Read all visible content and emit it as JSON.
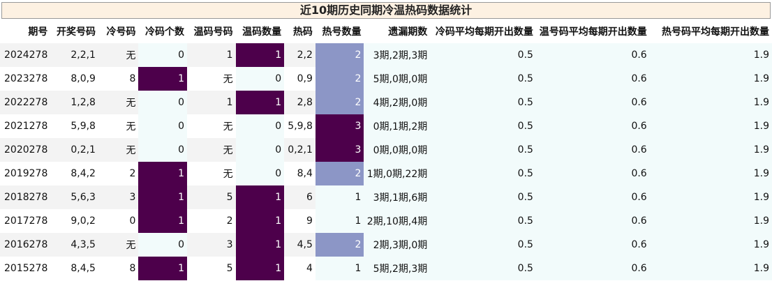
{
  "title": "近10期历史同期冷温热码数据统计",
  "headers": [
    "期号",
    "开奖号码",
    "冷号码",
    "冷码个数",
    "温码号码",
    "温码数量",
    "热码",
    "热号数量",
    "遗漏期数",
    "冷码平均每期开出数量",
    "温号码平均每期开出数量",
    "热号码平均每期开出数量"
  ],
  "colors": {
    "dark": "#4d004b",
    "light": "#8c96c6",
    "mint": "#f2fbfb",
    "stripe": "#f3f3f3",
    "title_bg": "#fdf1e2"
  },
  "rows": [
    {
      "period": "2024278",
      "draw": "2,2,1",
      "cold": "无",
      "cold_count": "0",
      "warm": "1",
      "warm_count": "1",
      "hot": "2,2",
      "hot_count": "2",
      "miss": "3期,2期,3期",
      "cold_avg": "0.5",
      "warm_avg": "0.6",
      "hot_avg": "1.9"
    },
    {
      "period": "2023278",
      "draw": "8,0,9",
      "cold": "8",
      "cold_count": "1",
      "warm": "无",
      "warm_count": "0",
      "hot": "0,9",
      "hot_count": "2",
      "miss": "5期,0期,0期",
      "cold_avg": "0.5",
      "warm_avg": "0.6",
      "hot_avg": "1.9"
    },
    {
      "period": "2022278",
      "draw": "1,2,8",
      "cold": "无",
      "cold_count": "0",
      "warm": "1",
      "warm_count": "1",
      "hot": "2,8",
      "hot_count": "2",
      "miss": "4期,2期,0期",
      "cold_avg": "0.5",
      "warm_avg": "0.6",
      "hot_avg": "1.9"
    },
    {
      "period": "2021278",
      "draw": "5,9,8",
      "cold": "无",
      "cold_count": "0",
      "warm": "无",
      "warm_count": "0",
      "hot": "5,9,8",
      "hot_count": "3",
      "miss": "0期,1期,2期",
      "cold_avg": "0.5",
      "warm_avg": "0.6",
      "hot_avg": "1.9"
    },
    {
      "period": "2020278",
      "draw": "0,2,1",
      "cold": "无",
      "cold_count": "0",
      "warm": "无",
      "warm_count": "0",
      "hot": "0,2,1",
      "hot_count": "3",
      "miss": "0期,0期,0期",
      "cold_avg": "0.5",
      "warm_avg": "0.6",
      "hot_avg": "1.9"
    },
    {
      "period": "2019278",
      "draw": "8,4,2",
      "cold": "2",
      "cold_count": "1",
      "warm": "无",
      "warm_count": "0",
      "hot": "8,4",
      "hot_count": "2",
      "miss": "1期,0期,22期",
      "cold_avg": "0.5",
      "warm_avg": "0.6",
      "hot_avg": "1.9"
    },
    {
      "period": "2018278",
      "draw": "5,6,3",
      "cold": "3",
      "cold_count": "1",
      "warm": "5",
      "warm_count": "1",
      "hot": "6",
      "hot_count": "1",
      "miss": "3期,1期,6期",
      "cold_avg": "0.5",
      "warm_avg": "0.6",
      "hot_avg": "1.9"
    },
    {
      "period": "2017278",
      "draw": "9,0,2",
      "cold": "0",
      "cold_count": "1",
      "warm": "2",
      "warm_count": "1",
      "hot": "9",
      "hot_count": "1",
      "miss": "2期,10期,4期",
      "cold_avg": "0.5",
      "warm_avg": "0.6",
      "hot_avg": "1.9"
    },
    {
      "period": "2016278",
      "draw": "4,3,5",
      "cold": "无",
      "cold_count": "0",
      "warm": "3",
      "warm_count": "1",
      "hot": "4,5",
      "hot_count": "2",
      "miss": "2期,3期,0期",
      "cold_avg": "0.5",
      "warm_avg": "0.6",
      "hot_avg": "1.9"
    },
    {
      "period": "2015278",
      "draw": "8,4,5",
      "cold": "8",
      "cold_count": "1",
      "warm": "5",
      "warm_count": "1",
      "hot": "4",
      "hot_count": "1",
      "miss": "5期,2期,3期",
      "cold_avg": "0.5",
      "warm_avg": "0.6",
      "hot_avg": "1.9"
    }
  ]
}
